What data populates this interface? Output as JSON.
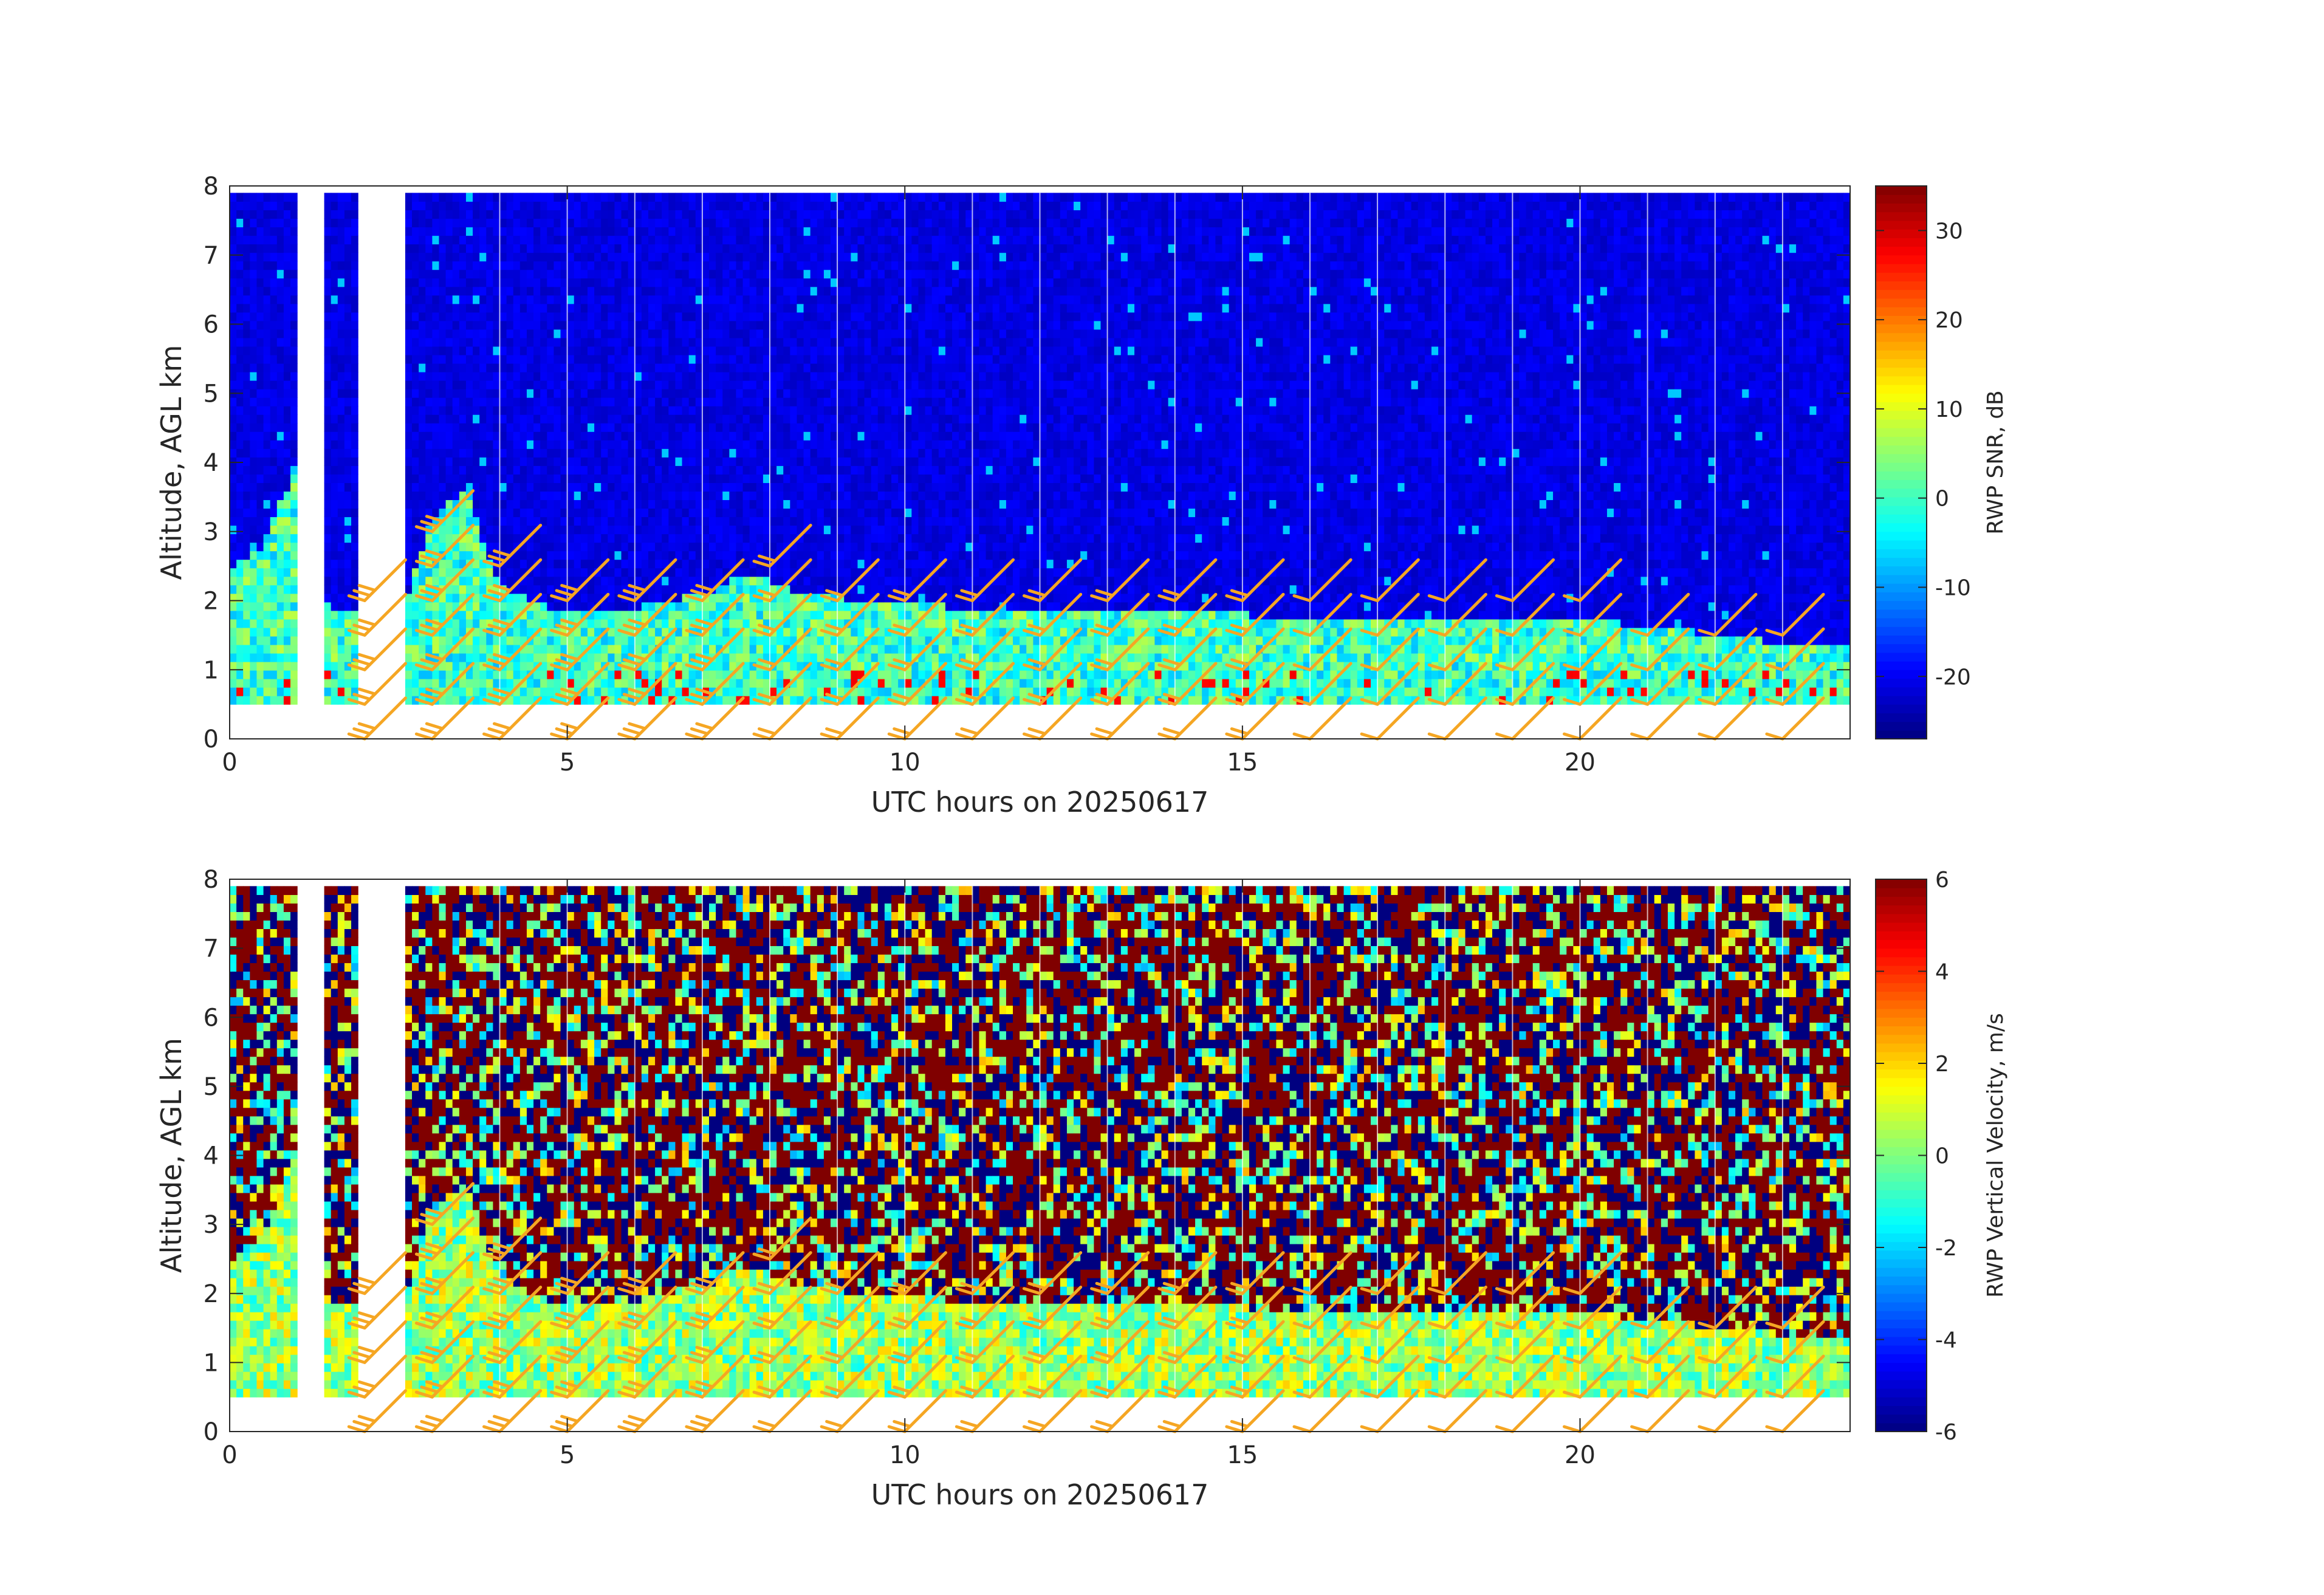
{
  "figure": {
    "background": "#ffffff",
    "colormap": "jet",
    "barb_color": "#F5A623"
  },
  "chart_data": [
    {
      "type": "heatmap",
      "id": "snr",
      "xlabel": "UTC hours on 20250617",
      "ylabel": "Altitude, AGL km",
      "xlim": [
        0,
        24
      ],
      "ylim": [
        0,
        8
      ],
      "xticks": [
        0,
        5,
        10,
        15,
        20
      ],
      "yticks": [
        0,
        1,
        2,
        3,
        4,
        5,
        6,
        7,
        8
      ],
      "grid": false,
      "colorbar": {
        "label": "RWP SNR, dB",
        "clim": [
          -27,
          35
        ],
        "ticks": [
          -20,
          -10,
          0,
          10,
          20,
          30
        ]
      },
      "boundary_layer_top_km": [
        [
          0.0,
          2.5
        ],
        [
          0.5,
          2.8
        ],
        [
          1.0,
          4.0
        ],
        [
          1.5,
          1.8
        ],
        [
          2.0,
          1.8
        ],
        [
          2.6,
          2.0
        ],
        [
          3.0,
          3.2
        ],
        [
          3.5,
          3.6
        ],
        [
          4.0,
          2.2
        ],
        [
          5.0,
          1.8
        ],
        [
          6.0,
          1.9
        ],
        [
          7.0,
          2.1
        ],
        [
          7.7,
          2.4
        ],
        [
          8.5,
          2.1
        ],
        [
          10.0,
          1.95
        ],
        [
          11.0,
          1.9
        ],
        [
          12.0,
          1.9
        ],
        [
          13.0,
          1.8
        ],
        [
          14.0,
          1.8
        ],
        [
          15.0,
          1.8
        ],
        [
          16.0,
          1.75
        ],
        [
          17.0,
          1.7
        ],
        [
          18.0,
          1.7
        ],
        [
          19.0,
          1.75
        ],
        [
          20.0,
          1.7
        ],
        [
          21.0,
          1.65
        ],
        [
          22.0,
          1.5
        ],
        [
          23.0,
          1.4
        ],
        [
          24.0,
          1.4
        ]
      ],
      "data_gaps_hours": [
        [
          0.55,
          0.62
        ],
        [
          0.98,
          1.05
        ],
        [
          1.02,
          1.4
        ],
        [
          1.95,
          2.03
        ],
        [
          2.03,
          2.6
        ]
      ]
    },
    {
      "type": "heatmap",
      "id": "vertical_velocity",
      "xlabel": "UTC hours on 20250617",
      "ylabel": "Altitude, AGL km",
      "xlim": [
        0,
        24
      ],
      "ylim": [
        0,
        8
      ],
      "xticks": [
        0,
        5,
        10,
        15,
        20
      ],
      "yticks": [
        0,
        1,
        2,
        3,
        4,
        5,
        6,
        7,
        8
      ],
      "grid": false,
      "colorbar": {
        "label": "RWP Vertical Velocity, m/s",
        "clim": [
          -6,
          6
        ],
        "ticks": [
          -6,
          -4,
          -2,
          0,
          2,
          4,
          6
        ]
      },
      "boundary_layer_top_km": [
        [
          0.0,
          2.5
        ],
        [
          0.5,
          2.8
        ],
        [
          1.0,
          4.0
        ],
        [
          1.5,
          1.8
        ],
        [
          2.0,
          1.8
        ],
        [
          2.6,
          2.0
        ],
        [
          3.0,
          3.2
        ],
        [
          3.5,
          3.6
        ],
        [
          4.0,
          2.2
        ],
        [
          5.0,
          1.8
        ],
        [
          6.0,
          1.9
        ],
        [
          7.0,
          2.1
        ],
        [
          7.7,
          2.4
        ],
        [
          8.5,
          2.1
        ],
        [
          10.0,
          1.95
        ],
        [
          11.0,
          1.9
        ],
        [
          12.0,
          1.9
        ],
        [
          13.0,
          1.8
        ],
        [
          14.0,
          1.8
        ],
        [
          15.0,
          1.8
        ],
        [
          16.0,
          1.75
        ],
        [
          17.0,
          1.7
        ],
        [
          18.0,
          1.7
        ],
        [
          19.0,
          1.75
        ],
        [
          20.0,
          1.7
        ],
        [
          21.0,
          1.65
        ],
        [
          22.0,
          1.5
        ],
        [
          23.0,
          1.4
        ],
        [
          24.0,
          1.4
        ]
      ],
      "data_gaps_hours": [
        [
          0.55,
          0.62
        ],
        [
          0.98,
          1.05
        ],
        [
          1.02,
          1.4
        ],
        [
          1.95,
          2.03
        ],
        [
          2.03,
          2.6
        ]
      ]
    }
  ]
}
